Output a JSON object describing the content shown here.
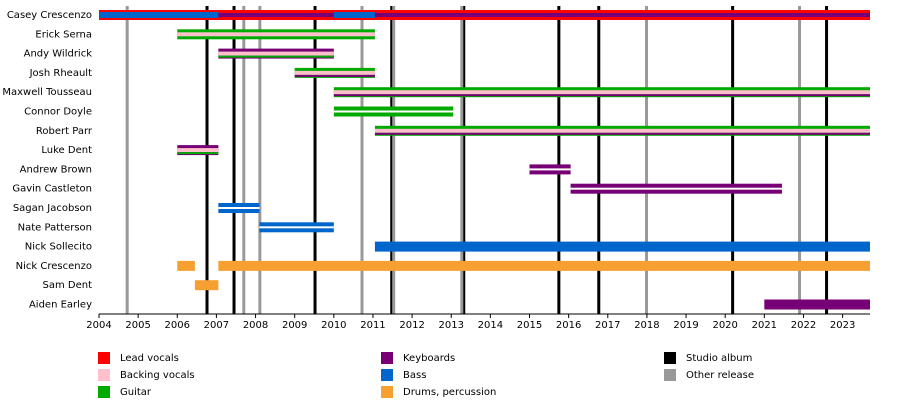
{
  "chart_data": {
    "type": "timeline",
    "xlim": [
      2004,
      2023.7
    ],
    "xticks": [
      2004,
      2005,
      2006,
      2007,
      2008,
      2009,
      2010,
      2011,
      2012,
      2013,
      2014,
      2015,
      2016,
      2017,
      2018,
      2019,
      2020,
      2021,
      2022,
      2023
    ],
    "roles": [
      {
        "name": "Lead vocals",
        "color": "#ff0000"
      },
      {
        "name": "Backing vocals",
        "color": "#ffc0cb"
      },
      {
        "name": "Guitar",
        "color": "#00aa00"
      },
      {
        "name": "Keyboards",
        "color": "#770077"
      },
      {
        "name": "Bass",
        "color": "#0066cc"
      },
      {
        "name": "Drums, percussion",
        "color": "#f5a030"
      }
    ],
    "releases": [
      {
        "name": "Studio album",
        "color": "#000000",
        "x": [
          2006.76,
          2007.45,
          2009.52,
          2011.48,
          2013.32,
          2015.75,
          2016.77,
          2020.19,
          2022.59
        ]
      },
      {
        "name": "Other release",
        "color": "#999999",
        "x": [
          2004.72,
          2007.7,
          2008.11,
          2010.72,
          2011.53,
          2013.27,
          2017.99,
          2021.9
        ]
      }
    ],
    "members": [
      {
        "name": "Casey Crescenzo",
        "segments": [
          {
            "start": 2004,
            "end": 2023.7,
            "roles": [
              0,
              3
            ]
          },
          {
            "start": 2004,
            "end": 2007.05,
            "roles": [
              4
            ]
          },
          {
            "start": 2010,
            "end": 2011.05,
            "roles": [
              4
            ]
          }
        ]
      },
      {
        "name": "Erick Serna",
        "segments": [
          {
            "start": 2006,
            "end": 2011.05,
            "roles": [
              2,
              1
            ]
          }
        ]
      },
      {
        "name": "Andy Wildrick",
        "segments": [
          {
            "start": 2007.05,
            "end": 2010,
            "roles": [
              3,
              1,
              2
            ]
          }
        ]
      },
      {
        "name": "Josh Rheault",
        "segments": [
          {
            "start": 2009,
            "end": 2011.05,
            "roles": [
              2,
              1,
              3
            ]
          }
        ]
      },
      {
        "name": "Maxwell Tousseau",
        "segments": [
          {
            "start": 2010,
            "end": 2023.7,
            "roles": [
              2,
              1,
              3
            ]
          }
        ]
      },
      {
        "name": "Connor Doyle",
        "segments": [
          {
            "start": 2010,
            "end": 2013.05,
            "roles": [
              2
            ]
          }
        ]
      },
      {
        "name": "Robert Parr",
        "segments": [
          {
            "start": 2011.05,
            "end": 2023.7,
            "roles": [
              2,
              1,
              3
            ]
          }
        ]
      },
      {
        "name": "Luke Dent",
        "segments": [
          {
            "start": 2006,
            "end": 2007.05,
            "roles": [
              3,
              1,
              2
            ]
          }
        ]
      },
      {
        "name": "Andrew Brown",
        "segments": [
          {
            "start": 2015,
            "end": 2016.05,
            "roles": [
              3
            ]
          }
        ]
      },
      {
        "name": "Gavin Castleton",
        "segments": [
          {
            "start": 2016.05,
            "end": 2021.45,
            "roles": [
              3
            ]
          }
        ]
      },
      {
        "name": "Sagan Jacobson",
        "segments": [
          {
            "start": 2007.05,
            "end": 2008.1,
            "roles": [
              4
            ]
          }
        ]
      },
      {
        "name": "Nate Patterson",
        "segments": [
          {
            "start": 2008.1,
            "end": 2010,
            "roles": [
              4
            ]
          }
        ]
      },
      {
        "name": "Nick Sollecito",
        "segments": [
          {
            "start": 2011.05,
            "end": 2023.7,
            "roles": [
              4
            ]
          }
        ]
      },
      {
        "name": "Nick Crescenzo",
        "segments": [
          {
            "start": 2006,
            "end": 2006.45,
            "roles": [
              5
            ]
          },
          {
            "start": 2007.05,
            "end": 2023.7,
            "roles": [
              5
            ]
          }
        ]
      },
      {
        "name": "Sam Dent",
        "segments": [
          {
            "start": 2006.45,
            "end": 2007.05,
            "roles": [
              5
            ]
          }
        ]
      },
      {
        "name": "Aiden Earley",
        "segments": [
          {
            "start": 2021,
            "end": 2023.7,
            "roles": [
              3
            ]
          }
        ]
      }
    ]
  }
}
